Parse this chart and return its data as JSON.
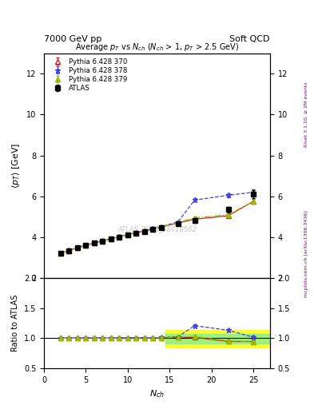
{
  "title_left": "7000 GeV pp",
  "title_right": "Soft QCD",
  "plot_title": "Average $p_T$ vs $N_{ch}$ ($N_{ch}$ > 1, $p_T$ > 2.5 GeV)",
  "ylabel_main": "$\\langle p_T \\rangle$ [GeV]",
  "ylabel_ratio": "Ratio to ATLAS",
  "xlabel": "$N_{ch}$",
  "right_label_top": "Rivet 3.1.10, ≥ 2M events",
  "right_label_bot": "mcplots.cern.ch [arXiv:1306.3436]",
  "watermark": "ATLAS_2010_S8918562",
  "atlas_x": [
    2,
    3,
    4,
    5,
    6,
    7,
    8,
    9,
    10,
    11,
    12,
    13,
    14,
    16,
    18,
    22,
    25
  ],
  "atlas_y": [
    3.22,
    3.35,
    3.48,
    3.6,
    3.72,
    3.82,
    3.92,
    4.0,
    4.1,
    4.2,
    4.28,
    4.38,
    4.47,
    4.65,
    4.82,
    5.35,
    6.1
  ],
  "atlas_yerr": [
    0.05,
    0.04,
    0.04,
    0.04,
    0.04,
    0.04,
    0.04,
    0.04,
    0.04,
    0.04,
    0.05,
    0.05,
    0.05,
    0.07,
    0.1,
    0.15,
    0.2
  ],
  "py370_x": [
    2,
    3,
    4,
    5,
    6,
    7,
    8,
    9,
    10,
    11,
    12,
    13,
    14,
    16,
    18,
    22,
    25
  ],
  "py370_y": [
    3.22,
    3.35,
    3.48,
    3.6,
    3.72,
    3.82,
    3.92,
    4.02,
    4.12,
    4.22,
    4.3,
    4.4,
    4.5,
    4.7,
    4.88,
    5.05,
    5.75
  ],
  "py370_yerr": [
    0.02,
    0.02,
    0.02,
    0.02,
    0.02,
    0.02,
    0.02,
    0.02,
    0.02,
    0.02,
    0.02,
    0.02,
    0.02,
    0.03,
    0.05,
    0.08,
    0.12
  ],
  "py370_color": "#cc2222",
  "py370_label": "Pythia 6.428 370",
  "py378_x": [
    2,
    3,
    4,
    5,
    6,
    7,
    8,
    9,
    10,
    11,
    12,
    13,
    14,
    16,
    18,
    22,
    25
  ],
  "py378_y": [
    3.23,
    3.36,
    3.5,
    3.62,
    3.73,
    3.83,
    3.93,
    4.03,
    4.13,
    4.23,
    4.32,
    4.42,
    4.52,
    4.75,
    5.82,
    6.05,
    6.2
  ],
  "py378_yerr": [
    0.02,
    0.02,
    0.02,
    0.02,
    0.02,
    0.02,
    0.02,
    0.02,
    0.02,
    0.02,
    0.02,
    0.02,
    0.02,
    0.03,
    0.08,
    0.1,
    0.13
  ],
  "py378_color": "#4444dd",
  "py378_label": "Pythia 6.428 378",
  "py379_x": [
    2,
    3,
    4,
    5,
    6,
    7,
    8,
    9,
    10,
    11,
    12,
    13,
    14,
    16,
    18,
    22,
    25
  ],
  "py379_y": [
    3.22,
    3.35,
    3.49,
    3.6,
    3.72,
    3.82,
    3.92,
    4.02,
    4.12,
    4.22,
    4.3,
    4.4,
    4.5,
    4.72,
    4.95,
    5.1,
    5.75
  ],
  "py379_yerr": [
    0.02,
    0.02,
    0.02,
    0.02,
    0.02,
    0.02,
    0.02,
    0.02,
    0.02,
    0.02,
    0.02,
    0.02,
    0.02,
    0.03,
    0.06,
    0.09,
    0.13
  ],
  "py379_color": "#99bb00",
  "py379_label": "Pythia 6.428 379",
  "ylim_main": [
    2.0,
    13.0
  ],
  "ylim_ratio": [
    0.5,
    2.0
  ],
  "xlim": [
    0,
    27
  ],
  "ratio_yticks": [
    0.5,
    1.0,
    1.5,
    2.0
  ],
  "main_yticks": [
    2,
    4,
    6,
    8,
    10,
    12
  ]
}
